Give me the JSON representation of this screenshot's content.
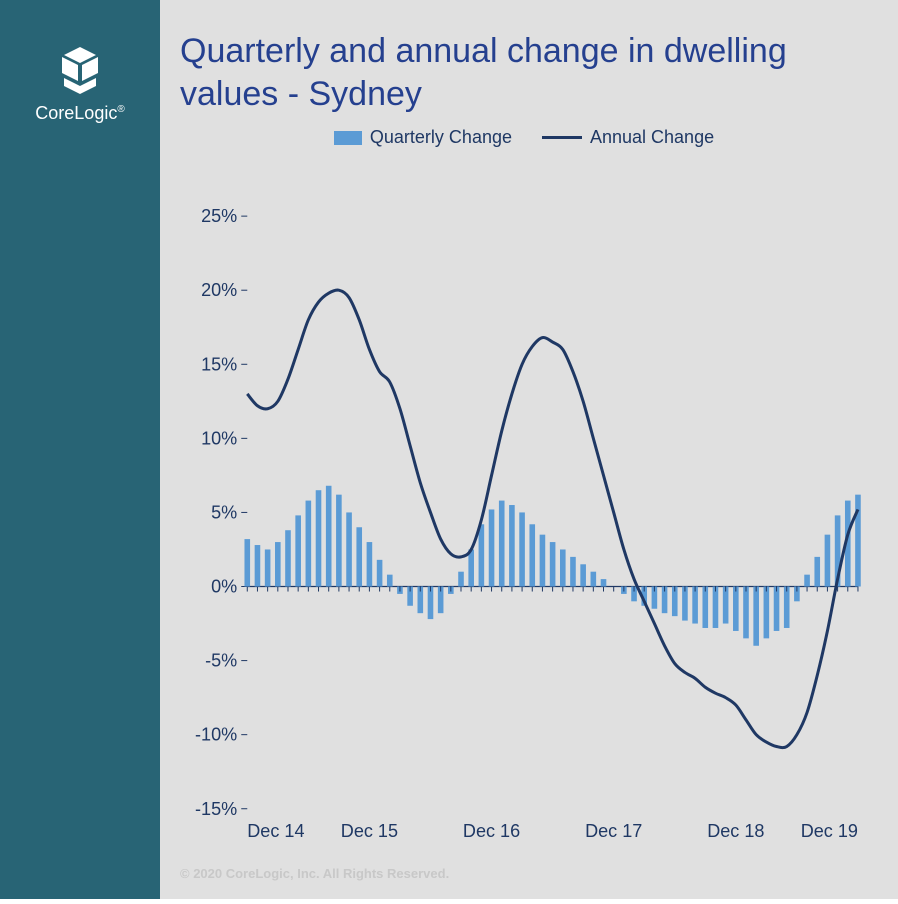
{
  "brand": {
    "name": "CoreLogic",
    "trademark": "®"
  },
  "title": "Quarterly and annual change in dwelling values - Sydney",
  "legend": {
    "quarterly": "Quarterly Change",
    "annual": "Annual Change"
  },
  "footer": "© 2020 CoreLogic, Inc. All Rights Reserved.",
  "chart": {
    "type": "bar+line",
    "background_color": "#e0e0e0",
    "sidebar_color": "#286475",
    "title_color": "#25408f",
    "text_color": "#1f3864",
    "bar_color": "#5b9bd5",
    "line_color": "#1f3864",
    "line_width": 3,
    "bar_width_ratio": 0.55,
    "ylim": [
      -15,
      25
    ],
    "ytick_step": 5,
    "ytick_format": "{v}%",
    "yticks": [
      -15,
      -10,
      -5,
      0,
      5,
      10,
      15,
      20,
      25
    ],
    "x_labels": [
      "Dec 14",
      "Dec 15",
      "Dec 16",
      "Dec 17",
      "Dec 18",
      "Dec 19"
    ],
    "x_label_indices": [
      0,
      12,
      24,
      36,
      48,
      60
    ],
    "n_points": 61,
    "quarterly_values": [
      3.2,
      2.8,
      2.5,
      3.0,
      3.8,
      4.8,
      5.8,
      6.5,
      6.8,
      6.2,
      5.0,
      4.0,
      3.0,
      1.8,
      0.8,
      -0.5,
      -1.3,
      -1.8,
      -2.2,
      -1.8,
      -0.5,
      1.0,
      2.5,
      4.2,
      5.2,
      5.8,
      5.5,
      5.0,
      4.2,
      3.5,
      3.0,
      2.5,
      2.0,
      1.5,
      1.0,
      0.5,
      0.0,
      -0.5,
      -1.0,
      -1.3,
      -1.5,
      -1.8,
      -2.0,
      -2.3,
      -2.5,
      -2.8,
      -2.8,
      -2.5,
      -3.0,
      -3.5,
      -4.0,
      -3.5,
      -3.0,
      -2.8,
      -1.0,
      0.8,
      2.0,
      3.5,
      4.8,
      5.8,
      6.2
    ],
    "annual_values": [
      13.0,
      12.2,
      12.0,
      12.5,
      14.0,
      16.0,
      18.0,
      19.2,
      19.8,
      20.0,
      19.5,
      18.0,
      16.0,
      14.5,
      13.8,
      12.0,
      9.5,
      7.0,
      5.0,
      3.2,
      2.2,
      2.0,
      2.5,
      4.5,
      7.5,
      10.5,
      13.0,
      15.0,
      16.2,
      16.8,
      16.5,
      16.0,
      14.5,
      12.5,
      10.0,
      7.5,
      5.0,
      2.5,
      0.5,
      -1.0,
      -2.5,
      -4.0,
      -5.2,
      -5.8,
      -6.2,
      -6.8,
      -7.2,
      -7.5,
      -8.0,
      -9.0,
      -10.0,
      -10.5,
      -10.8,
      -10.8,
      -10.0,
      -8.5,
      -6.0,
      -3.0,
      0.5,
      3.5,
      5.2
    ]
  }
}
